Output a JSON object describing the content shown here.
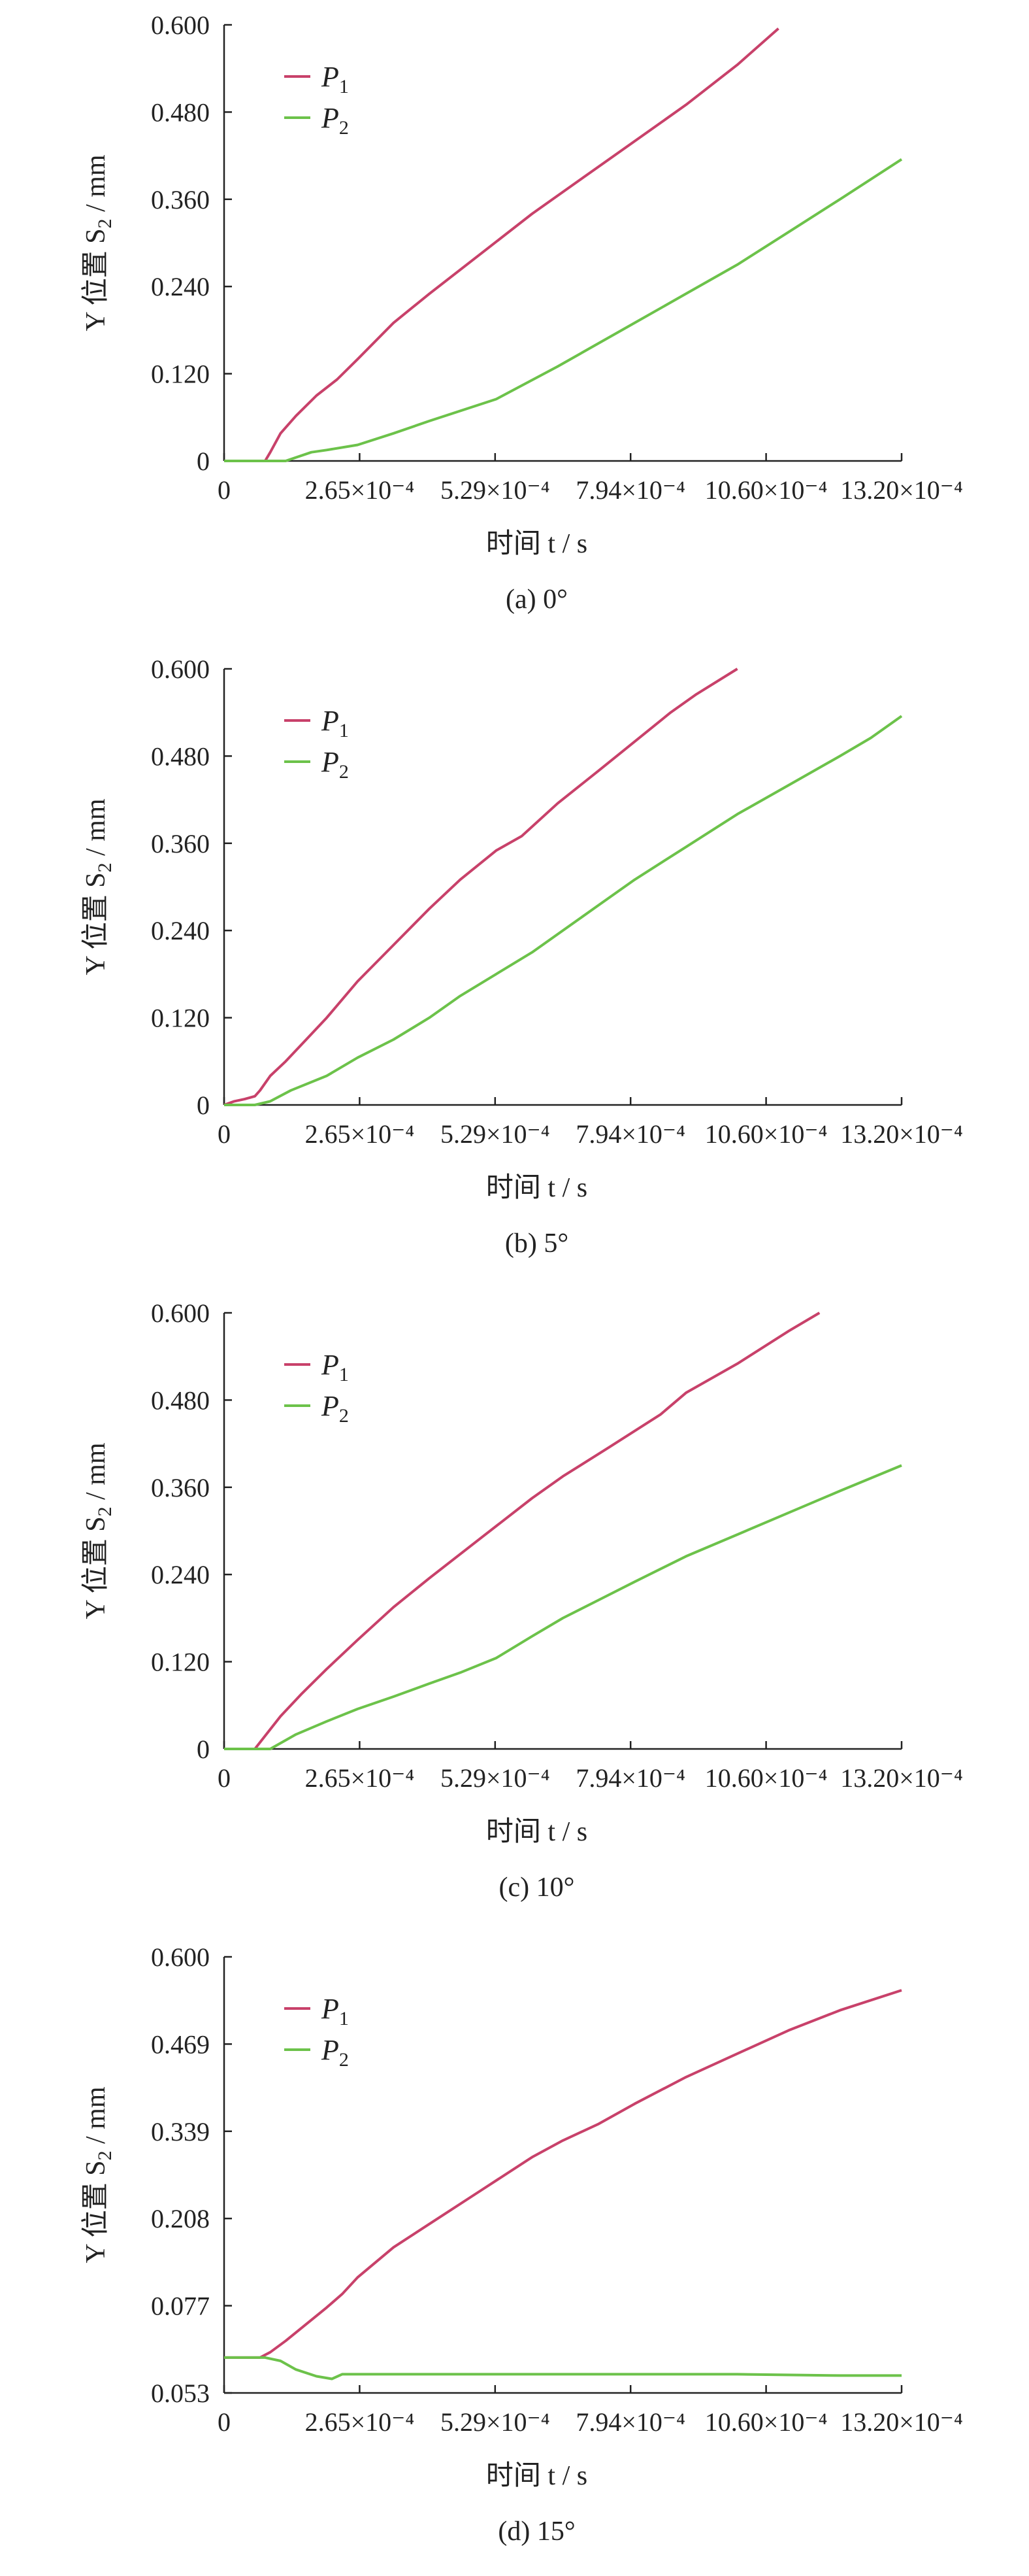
{
  "chart_data": [
    {
      "type": "line",
      "caption": "(a) 0°",
      "ylabel": "Y 位置 S2 / mm",
      "xlabel": "时间 t / s",
      "x_ticks": [
        "0",
        "2.65×10⁻⁴",
        "5.29×10⁻⁴",
        "7.94×10⁻⁴",
        "10.60×10⁻⁴",
        "13.20×10⁻⁴"
      ],
      "y_ticks": [
        "0",
        "0.120",
        "0.240",
        "0.360",
        "0.480",
        "0.600"
      ],
      "ylim": [
        0,
        0.6
      ],
      "xlim": [
        0,
        0.00132
      ],
      "legend_position": "top-left",
      "series": [
        {
          "name": "P1",
          "color": "#c8416a",
          "x": [
            0,
            8e-05,
            9e-05,
            0.00011,
            0.00014,
            0.00018,
            0.00022,
            0.00026,
            0.00033,
            0.0004,
            0.0005,
            0.0006,
            0.0007,
            0.0008,
            0.0009,
            0.001,
            0.00108
          ],
          "y": [
            0,
            0,
            0.012,
            0.038,
            0.062,
            0.09,
            0.112,
            0.14,
            0.19,
            0.23,
            0.285,
            0.34,
            0.39,
            0.44,
            0.49,
            0.545,
            0.595
          ]
        },
        {
          "name": "P2",
          "color": "#6cc24a",
          "x": [
            0,
            0.00012,
            0.00017,
            0.0002,
            0.00026,
            0.00033,
            0.0004,
            0.00053,
            0.00065,
            0.00075,
            0.0008,
            0.0009,
            0.001,
            0.0011,
            0.0012,
            0.00132
          ],
          "y": [
            0,
            0,
            0.012,
            0.015,
            0.022,
            0.038,
            0.055,
            0.085,
            0.13,
            0.17,
            0.19,
            0.23,
            0.27,
            0.315,
            0.36,
            0.415
          ]
        }
      ]
    },
    {
      "type": "line",
      "caption": "(b) 5°",
      "ylabel": "Y 位置 S2 / mm",
      "xlabel": "时间 t / s",
      "x_ticks": [
        "0",
        "2.65×10⁻⁴",
        "5.29×10⁻⁴",
        "7.94×10⁻⁴",
        "10.60×10⁻⁴",
        "13.20×10⁻⁴"
      ],
      "y_ticks": [
        "0",
        "0.120",
        "0.240",
        "0.360",
        "0.480",
        "0.600"
      ],
      "ylim": [
        0,
        0.6
      ],
      "xlim": [
        0,
        0.00132
      ],
      "legend_position": "top-left",
      "series": [
        {
          "name": "P1",
          "color": "#c8416a",
          "x": [
            0,
            2e-05,
            4e-05,
            6e-05,
            7e-05,
            9e-05,
            0.00012,
            0.00016,
            0.0002,
            0.00026,
            0.00033,
            0.0004,
            0.00046,
            0.00053,
            0.00058,
            0.00065,
            0.00073,
            0.0008,
            0.00087,
            0.00092,
            0.001
          ],
          "y": [
            0,
            0.005,
            0.008,
            0.012,
            0.02,
            0.04,
            0.06,
            0.09,
            0.12,
            0.17,
            0.22,
            0.27,
            0.31,
            0.35,
            0.37,
            0.415,
            0.46,
            0.5,
            0.54,
            0.565,
            0.6
          ]
        },
        {
          "name": "P2",
          "color": "#6cc24a",
          "x": [
            0,
            6e-05,
            9e-05,
            0.00013,
            0.0002,
            0.00026,
            0.00033,
            0.0004,
            0.00046,
            0.00053,
            0.0006,
            0.00066,
            0.00073,
            0.0008,
            0.0009,
            0.001,
            0.0011,
            0.0012,
            0.00126,
            0.00132
          ],
          "y": [
            0,
            0,
            0.005,
            0.02,
            0.04,
            0.065,
            0.09,
            0.12,
            0.15,
            0.18,
            0.21,
            0.24,
            0.275,
            0.31,
            0.355,
            0.4,
            0.44,
            0.48,
            0.505,
            0.535
          ]
        }
      ]
    },
    {
      "type": "line",
      "caption": "(c) 10°",
      "ylabel": "Y 位置 S2 / mm",
      "xlabel": "时间 t / s",
      "x_ticks": [
        "0",
        "2.65×10⁻⁴",
        "5.29×10⁻⁴",
        "7.94×10⁻⁴",
        "10.60×10⁻⁴",
        "13.20×10⁻⁴"
      ],
      "y_ticks": [
        "0",
        "0.120",
        "0.240",
        "0.360",
        "0.480",
        "0.600"
      ],
      "ylim": [
        0,
        0.6
      ],
      "xlim": [
        0,
        0.00132
      ],
      "legend_position": "top-left",
      "series": [
        {
          "name": "P1",
          "color": "#c8416a",
          "x": [
            0,
            6e-05,
            8e-05,
            0.00011,
            0.00015,
            0.0002,
            0.00026,
            0.00033,
            0.0004,
            0.0005,
            0.0006,
            0.00066,
            0.00075,
            0.00085,
            0.0009,
            0.001,
            0.0011,
            0.00116
          ],
          "y": [
            0,
            0,
            0.018,
            0.045,
            0.075,
            0.11,
            0.15,
            0.195,
            0.235,
            0.29,
            0.345,
            0.375,
            0.415,
            0.46,
            0.49,
            0.53,
            0.575,
            0.6
          ]
        },
        {
          "name": "P2",
          "color": "#6cc24a",
          "x": [
            0,
            9e-05,
            0.00011,
            0.00014,
            0.0002,
            0.00026,
            0.00033,
            0.0004,
            0.00046,
            0.00053,
            0.0006,
            0.00066,
            0.00073,
            0.0008,
            0.0009,
            0.001,
            0.0011,
            0.0012,
            0.00132
          ],
          "y": [
            0,
            0,
            0.008,
            0.02,
            0.038,
            0.055,
            0.072,
            0.09,
            0.105,
            0.125,
            0.155,
            0.18,
            0.205,
            0.23,
            0.265,
            0.295,
            0.325,
            0.355,
            0.39
          ]
        }
      ]
    },
    {
      "type": "line",
      "caption": "(d) 15°",
      "ylabel": "Y 位置 S2 / mm",
      "xlabel": "时间 t / s",
      "x_ticks": [
        "0",
        "2.65×10⁻⁴",
        "5.29×10⁻⁴",
        "7.94×10⁻⁴",
        "10.60×10⁻⁴",
        "13.20×10⁻⁴"
      ],
      "y_ticks": [
        "0.053",
        "0.077",
        "0.208",
        "0.339",
        "0.469",
        "0.600"
      ],
      "ylim": [
        -0.053,
        0.6
      ],
      "xlim": [
        0,
        0.00132
      ],
      "legend_position": "top-left",
      "series": [
        {
          "name": "P1",
          "color": "#c8416a",
          "x": [
            0,
            7e-05,
            9e-05,
            0.00012,
            0.00016,
            0.0002,
            0.00023,
            0.00026,
            0.00033,
            0.0004,
            0.0005,
            0.0006,
            0.00066,
            0.00073,
            0.0008,
            0.0009,
            0.001,
            0.0011,
            0.0012,
            0.00132
          ],
          "y": [
            0,
            0,
            0.008,
            0.025,
            0.05,
            0.075,
            0.095,
            0.12,
            0.165,
            0.2,
            0.25,
            0.3,
            0.325,
            0.35,
            0.38,
            0.42,
            0.455,
            0.49,
            0.52,
            0.55
          ]
        },
        {
          "name": "P2",
          "color": "#6cc24a",
          "x": [
            0,
            8e-05,
            0.00011,
            0.00014,
            0.00018,
            0.00021,
            0.00023,
            0.00026,
            0.0004,
            0.0006,
            0.0008,
            0.001,
            0.0012,
            0.00132
          ],
          "y": [
            0,
            0,
            -0.005,
            -0.018,
            -0.028,
            -0.032,
            -0.025,
            -0.025,
            -0.025,
            -0.025,
            -0.025,
            -0.025,
            -0.027,
            -0.027
          ]
        }
      ]
    }
  ]
}
